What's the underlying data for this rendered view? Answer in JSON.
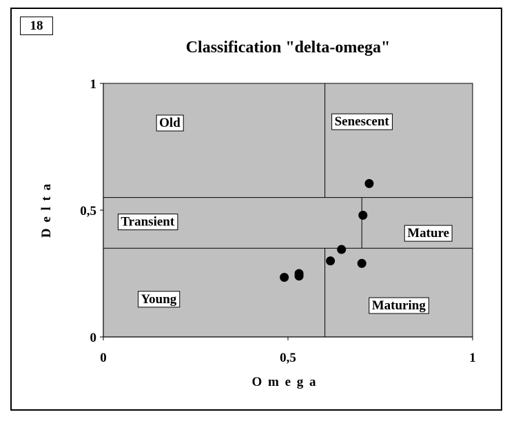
{
  "badge": "18",
  "chart_data": {
    "type": "scatter",
    "title": "Classification \"delta-omega\"",
    "xlabel": "O m e g a",
    "ylabel": "D e l t a",
    "xlim": [
      0,
      1
    ],
    "ylim": [
      0,
      1
    ],
    "x_ticks": [
      {
        "value": 0,
        "label": "0"
      },
      {
        "value": 0.5,
        "label": "0,5"
      },
      {
        "value": 1,
        "label": "1"
      }
    ],
    "y_ticks": [
      {
        "value": 0,
        "label": "0"
      },
      {
        "value": 0.5,
        "label": "0,5"
      },
      {
        "value": 1,
        "label": "1"
      }
    ],
    "grid": false,
    "plot_background": "#c0c0c0",
    "marker_color": "#000000",
    "dividers": {
      "delta_lines": [
        0.55,
        0.35
      ],
      "omega_line_top": 0.6,
      "omega_line_bottom": 0.6,
      "omega_line_middle": 0.7
    },
    "regions": [
      {
        "label": "Old",
        "x": 0.18,
        "y": 0.845
      },
      {
        "label": "Senescent",
        "x": 0.7,
        "y": 0.85
      },
      {
        "label": "Transient",
        "x": 0.12,
        "y": 0.455
      },
      {
        "label": "Mature",
        "x": 0.88,
        "y": 0.41
      },
      {
        "label": "Young",
        "x": 0.15,
        "y": 0.15
      },
      {
        "label": "Maturing",
        "x": 0.8,
        "y": 0.125
      }
    ],
    "points": [
      {
        "x": 0.49,
        "y": 0.235
      },
      {
        "x": 0.53,
        "y": 0.24
      },
      {
        "x": 0.53,
        "y": 0.25
      },
      {
        "x": 0.615,
        "y": 0.3
      },
      {
        "x": 0.645,
        "y": 0.345
      },
      {
        "x": 0.7,
        "y": 0.29
      },
      {
        "x": 0.703,
        "y": 0.48
      },
      {
        "x": 0.72,
        "y": 0.605
      }
    ]
  }
}
